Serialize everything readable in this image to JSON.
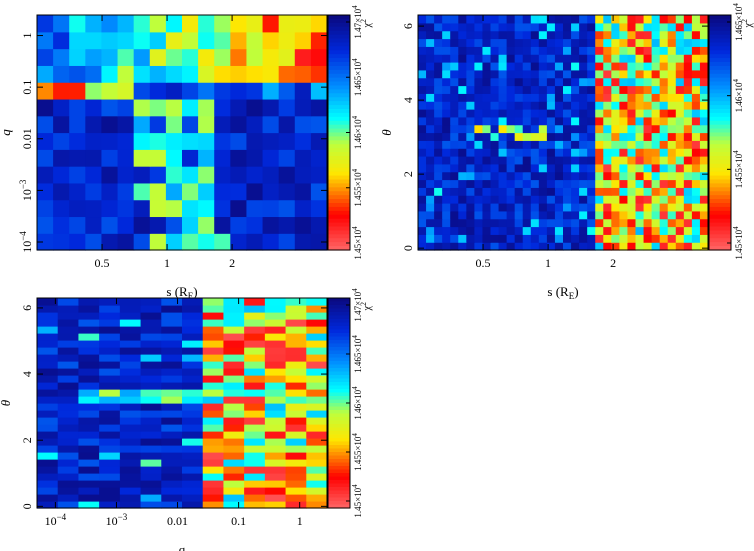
{
  "chart_data": [
    {
      "type": "heatmap",
      "panel": "top-left",
      "x_axis": {
        "label": "s (R_E)",
        "label_main": "s (R",
        "label_sub": "E",
        "label_close": ")",
        "scale": "log",
        "range": [
          0.25,
          5.5
        ],
        "ticks": [
          {
            "v": 0.5,
            "label": "0.5"
          },
          {
            "v": 1,
            "label": "1"
          },
          {
            "v": 2,
            "label": "2"
          }
        ]
      },
      "y_axis": {
        "label": "q",
        "scale": "log",
        "range": [
          7e-05,
          2.5
        ],
        "ticks": [
          {
            "v": 1,
            "base": "1",
            "exp": ""
          },
          {
            "v": 0.1,
            "base": "0.1",
            "exp": ""
          },
          {
            "v": 0.01,
            "base": "0.01",
            "exp": ""
          },
          {
            "v": 0.001,
            "base": "10",
            "exp": "−3"
          },
          {
            "v": 0.0001,
            "base": "10",
            "exp": "−4"
          }
        ]
      },
      "grid_size": [
        18,
        14
      ],
      "colorbar": {
        "title_main": "χ",
        "title_exp": "2",
        "ticks": [
          {
            "m": "1.45×10",
            "e": "4"
          },
          {
            "m": "1.455×10",
            "e": "4"
          },
          {
            "m": "1.46×10",
            "e": "4"
          },
          {
            "m": "1.465×10",
            "e": "4"
          },
          {
            "m": "1.47×10",
            "e": "4"
          }
        ]
      }
    },
    {
      "type": "heatmap",
      "panel": "top-right",
      "x_axis": {
        "label": "s (R_E)",
        "label_main": "s (R",
        "label_sub": "E",
        "label_close": ")",
        "scale": "log",
        "range": [
          0.25,
          5.5
        ],
        "ticks": [
          {
            "v": 0.5,
            "label": "0.5"
          },
          {
            "v": 1,
            "label": "1"
          },
          {
            "v": 2,
            "label": "2"
          }
        ]
      },
      "y_axis": {
        "label": "θ",
        "scale": "linear",
        "range": [
          -0.05,
          6.3
        ],
        "ticks": [
          {
            "v": 0,
            "label": "0"
          },
          {
            "v": 2,
            "label": "2"
          },
          {
            "v": 4,
            "label": "4"
          },
          {
            "v": 6,
            "label": "6"
          }
        ]
      },
      "grid_size": [
        36,
        30
      ],
      "colorbar": {
        "title_main": "χ",
        "title_exp": "2",
        "ticks": [
          {
            "m": "1.45×10",
            "e": "4"
          },
          {
            "m": "1.455×10",
            "e": "4"
          },
          {
            "m": "1.46×10",
            "e": "4"
          },
          {
            "m": "1.465×10",
            "e": "4"
          }
        ]
      }
    },
    {
      "type": "heatmap",
      "panel": "bottom-left",
      "x_axis": {
        "label": "q",
        "scale": "log",
        "range": [
          5e-05,
          2.8
        ],
        "ticks": [
          {
            "v": 0.0001,
            "base": "10",
            "exp": "−4"
          },
          {
            "v": 0.001,
            "base": "10",
            "exp": "−3"
          },
          {
            "v": 0.01,
            "base": "0.01",
            "exp": ""
          },
          {
            "v": 0.1,
            "base": "0.1",
            "exp": ""
          },
          {
            "v": 1,
            "base": "1",
            "exp": ""
          }
        ]
      },
      "y_axis": {
        "label": "θ",
        "scale": "linear",
        "range": [
          -0.05,
          6.3
        ],
        "ticks": [
          {
            "v": 0,
            "label": "0"
          },
          {
            "v": 2,
            "label": "2"
          },
          {
            "v": 4,
            "label": "4"
          },
          {
            "v": 6,
            "label": "6"
          }
        ]
      },
      "grid_size": [
        14,
        30
      ],
      "colorbar": {
        "title_main": "χ",
        "title_exp": "2",
        "ticks": [
          {
            "m": "1.45×10",
            "e": "4"
          },
          {
            "m": "1.455×10",
            "e": "4"
          },
          {
            "m": "1.46×10",
            "e": "4"
          },
          {
            "m": "1.465×10",
            "e": "4"
          },
          {
            "m": "1.47×10",
            "e": "4"
          }
        ]
      }
    }
  ]
}
